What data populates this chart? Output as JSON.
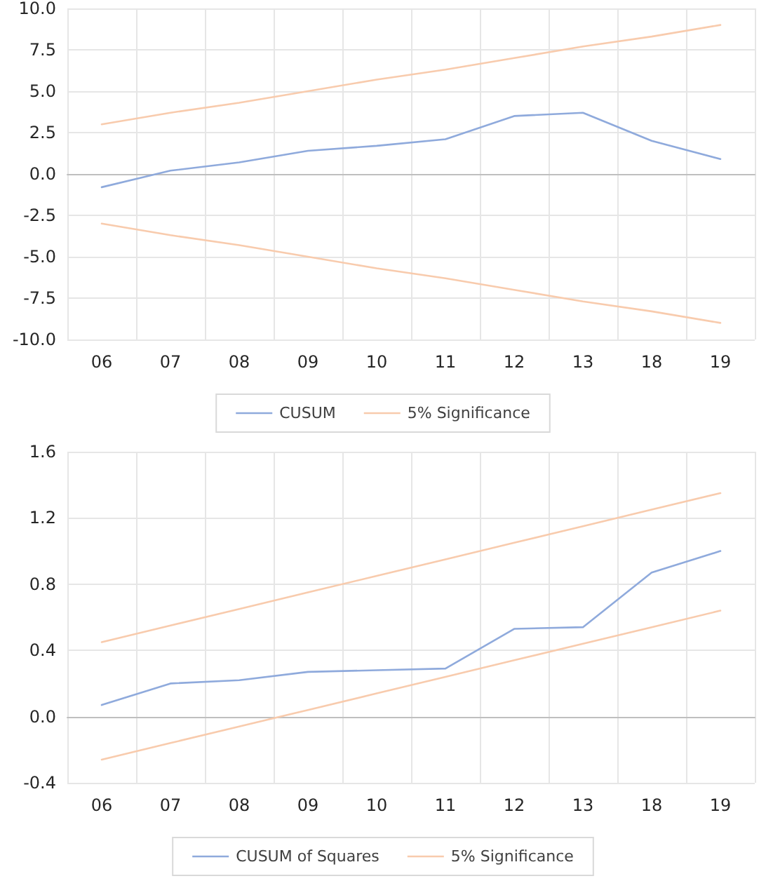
{
  "chart_data": [
    {
      "type": "line",
      "categories": [
        "06",
        "07",
        "08",
        "09",
        "10",
        "11",
        "12",
        "13",
        "18",
        "19"
      ],
      "series": [
        {
          "name": "CUSUM",
          "color": "#8faadc",
          "values": [
            -0.8,
            0.2,
            0.7,
            1.4,
            1.7,
            2.1,
            3.5,
            3.7,
            2.0,
            0.9
          ]
        },
        {
          "name": "5% Significance",
          "color": "#f8cbad",
          "values": [
            3.0,
            3.7,
            4.3,
            5.0,
            5.7,
            6.3,
            7.0,
            7.7,
            8.3,
            9.0
          ]
        },
        {
          "color": "#f8cbad",
          "values": [
            -3.0,
            -3.7,
            -4.3,
            -5.0,
            -5.7,
            -6.3,
            -7.0,
            -7.7,
            -8.3,
            -9.0
          ]
        }
      ],
      "ylim": [
        -10,
        10
      ],
      "yticks": [
        {
          "value": -10,
          "label": "-10.0"
        },
        {
          "value": -7.5,
          "label": "-7.5"
        },
        {
          "value": -5,
          "label": "-5.0"
        },
        {
          "value": -2.5,
          "label": "-2.5"
        },
        {
          "value": 0,
          "label": "0.0"
        },
        {
          "value": 2.5,
          "label": "2.5"
        },
        {
          "value": 5,
          "label": "5.0"
        },
        {
          "value": 7.5,
          "label": "7.5"
        },
        {
          "value": 10,
          "label": "10.0"
        }
      ],
      "grid": true,
      "legend": "bottom",
      "marker": "none",
      "line_style": "solid"
    },
    {
      "type": "line",
      "categories": [
        "06",
        "07",
        "08",
        "09",
        "10",
        "11",
        "12",
        "13",
        "18",
        "19"
      ],
      "series": [
        {
          "name": "CUSUM of Squares",
          "color": "#8faadc",
          "values": [
            0.07,
            0.2,
            0.22,
            0.27,
            0.28,
            0.29,
            0.53,
            0.54,
            0.87,
            1.0
          ]
        },
        {
          "name": "5% Significance",
          "color": "#f8cbad",
          "values": [
            0.45,
            0.55,
            0.65,
            0.75,
            0.85,
            0.95,
            1.05,
            1.15,
            1.25,
            1.35
          ]
        },
        {
          "color": "#f8cbad",
          "values": [
            -0.26,
            -0.16,
            -0.06,
            0.04,
            0.14,
            0.24,
            0.34,
            0.44,
            0.54,
            0.64
          ]
        }
      ],
      "ylim": [
        -0.4,
        1.6
      ],
      "yticks": [
        {
          "value": -0.4,
          "label": "-0.4"
        },
        {
          "value": 0,
          "label": "0.0"
        },
        {
          "value": 0.4,
          "label": "0.4"
        },
        {
          "value": 0.8,
          "label": "0.8"
        },
        {
          "value": 1.2,
          "label": "1.2"
        },
        {
          "value": 1.6,
          "label": "1.6"
        }
      ],
      "grid": true,
      "legend": "bottom",
      "marker": "none",
      "line_style": "solid"
    }
  ]
}
